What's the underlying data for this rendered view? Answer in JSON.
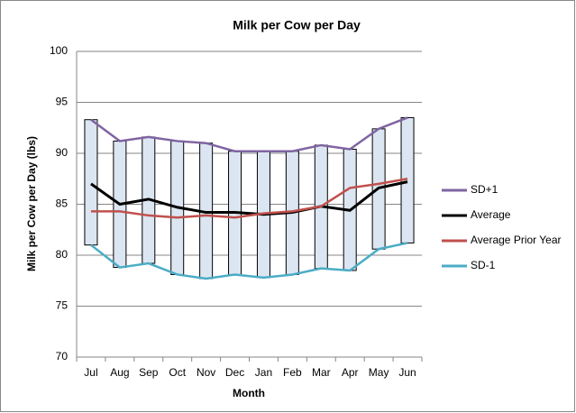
{
  "chart_data": {
    "type": "line",
    "title": "Milk per Cow per Day",
    "x_label": "Month",
    "y_label": "Milk per Cow per Day (lbs)",
    "categories": [
      "Jul",
      "Aug",
      "Sep",
      "Oct",
      "Nov",
      "Dec",
      "Jan",
      "Feb",
      "Mar",
      "Apr",
      "May",
      "Jun"
    ],
    "series": [
      {
        "name": "SD+1",
        "color": "#8064a2",
        "values": [
          93.3,
          91.2,
          91.6,
          91.2,
          91.0,
          90.2,
          90.2,
          90.2,
          90.8,
          90.4,
          92.4,
          93.5
        ]
      },
      {
        "name": "Average",
        "color": "#000000",
        "values": [
          87.0,
          85.0,
          85.5,
          84.7,
          84.2,
          84.2,
          84.0,
          84.2,
          84.8,
          84.4,
          86.6,
          87.2
        ]
      },
      {
        "name": "Average Prior Year",
        "color": "#c0504d",
        "values": [
          84.3,
          84.3,
          83.9,
          83.7,
          83.9,
          83.7,
          84.1,
          84.3,
          84.8,
          86.6,
          87.0,
          87.5
        ]
      },
      {
        "name": "SD-1",
        "color": "#4bacc6",
        "values": [
          81.0,
          78.8,
          79.2,
          78.1,
          77.7,
          78.1,
          77.8,
          78.1,
          78.7,
          78.5,
          80.6,
          81.2
        ]
      }
    ],
    "up_down_bars": true,
    "bar_color": "#dce6f2",
    "ylim": [
      70,
      100
    ],
    "yticks": [
      70,
      75,
      80,
      85,
      90,
      95,
      100
    ],
    "grid": true,
    "legend": "right"
  }
}
